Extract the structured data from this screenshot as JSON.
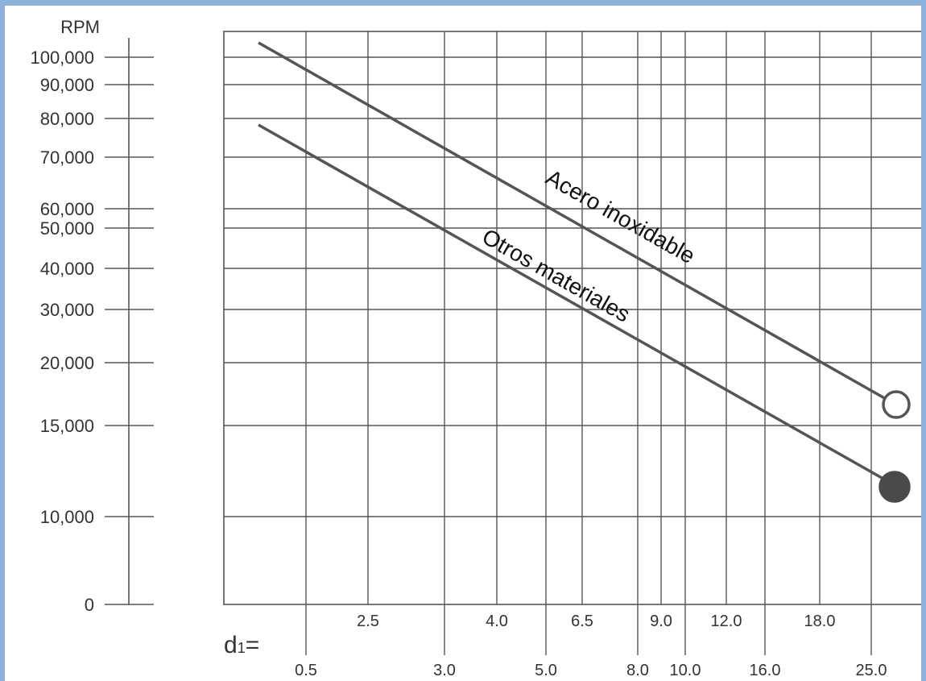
{
  "chart_data": {
    "type": "line",
    "y_axis": {
      "unit_label": "RPM",
      "ticks": [
        "100,000",
        "90,000",
        "80,000",
        "70,000",
        "60,000",
        "50,000",
        "40,000",
        "30,000",
        "20,000",
        "15,000",
        "10,000",
        "0"
      ]
    },
    "x_axis": {
      "label": "d",
      "label_subscript": "1",
      "label_suffix": "=",
      "upper_ticks": [
        "2.5",
        "4.0",
        "6.5",
        "9.0",
        "12.0",
        "18.0"
      ],
      "lower_ticks": [
        "0.5",
        "3.0",
        "5.0",
        "8.0",
        "10.0",
        "16.0",
        "25.0"
      ]
    },
    "series": [
      {
        "name": "Acero inoxidable",
        "marker": "open-circle",
        "x": [
          0.5,
          25.0
        ],
        "y": [
          103000,
          16500
        ]
      },
      {
        "name": "Otros materiales",
        "marker": "filled-circle",
        "x": [
          0.5,
          25.0
        ],
        "y": [
          78000,
          11500
        ]
      }
    ],
    "colors": {
      "line": "#555555",
      "grid": "#555555",
      "marker_fill": "#4a4a4a",
      "frame": "#8fb2dc"
    }
  }
}
